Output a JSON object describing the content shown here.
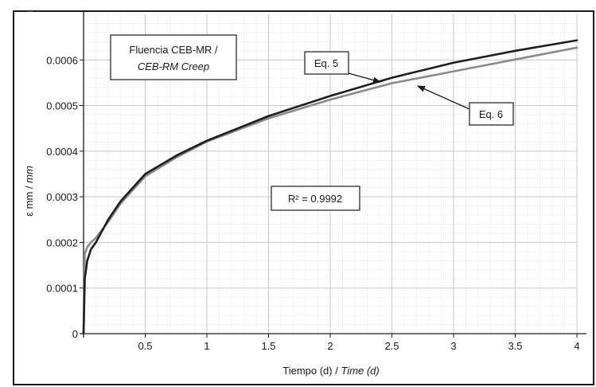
{
  "chart_data": {
    "type": "line",
    "title": "",
    "xlabel": "Tiempo (d) / ",
    "xlabel_italic": "Time (d)",
    "ylabel": "ε mm / ",
    "ylabel_italic": "mm",
    "xlim": [
      0,
      4
    ],
    "ylim": [
      0,
      0.0007
    ],
    "x_ticks": [
      0.5,
      1,
      1.5,
      2,
      2.5,
      3,
      3.5,
      4
    ],
    "x_tick_labels": [
      "0.5",
      "1",
      "1.5",
      "2",
      "2.5",
      "3",
      "3.5",
      "4"
    ],
    "y_ticks": [
      0,
      0.0001,
      0.0002,
      0.0003,
      0.0004,
      0.0005,
      0.0006
    ],
    "y_tick_labels": [
      "0",
      "0.0001",
      "0.0002",
      "0.0003",
      "0.0004",
      "0.0005",
      "0.0006"
    ],
    "grid": true,
    "legend_box": {
      "line1": "Fluencia CEB-MR /",
      "line2": "CEB-RM Creep"
    },
    "annotation": "R² = 0.9992",
    "series": [
      {
        "name": "Eq. 5",
        "color": "#1e1e1e",
        "x": [
          0,
          0.01,
          0.03,
          0.06,
          0.1,
          0.2,
          0.3,
          0.5,
          0.75,
          1,
          1.5,
          2,
          2.5,
          3,
          3.5,
          4
        ],
        "y": [
          0,
          0.00012,
          0.00016,
          0.000185,
          0.0002,
          0.00025,
          0.00029,
          0.00035,
          0.00039,
          0.000423,
          0.000477,
          0.000521,
          0.000561,
          0.000594,
          0.00062,
          0.000643
        ]
      },
      {
        "name": "Eq. 6",
        "color": "#8a8a8a",
        "x": [
          0,
          0.01,
          0.03,
          0.06,
          0.1,
          0.2,
          0.3,
          0.5,
          0.75,
          1,
          1.5,
          2,
          2.5,
          3,
          3.5,
          4
        ],
        "y": [
          0,
          0.000175,
          0.00019,
          0.0002,
          0.00021,
          0.000245,
          0.000285,
          0.000345,
          0.000386,
          0.000421,
          0.000472,
          0.000513,
          0.000549,
          0.000575,
          0.000601,
          0.000627
        ]
      }
    ]
  }
}
